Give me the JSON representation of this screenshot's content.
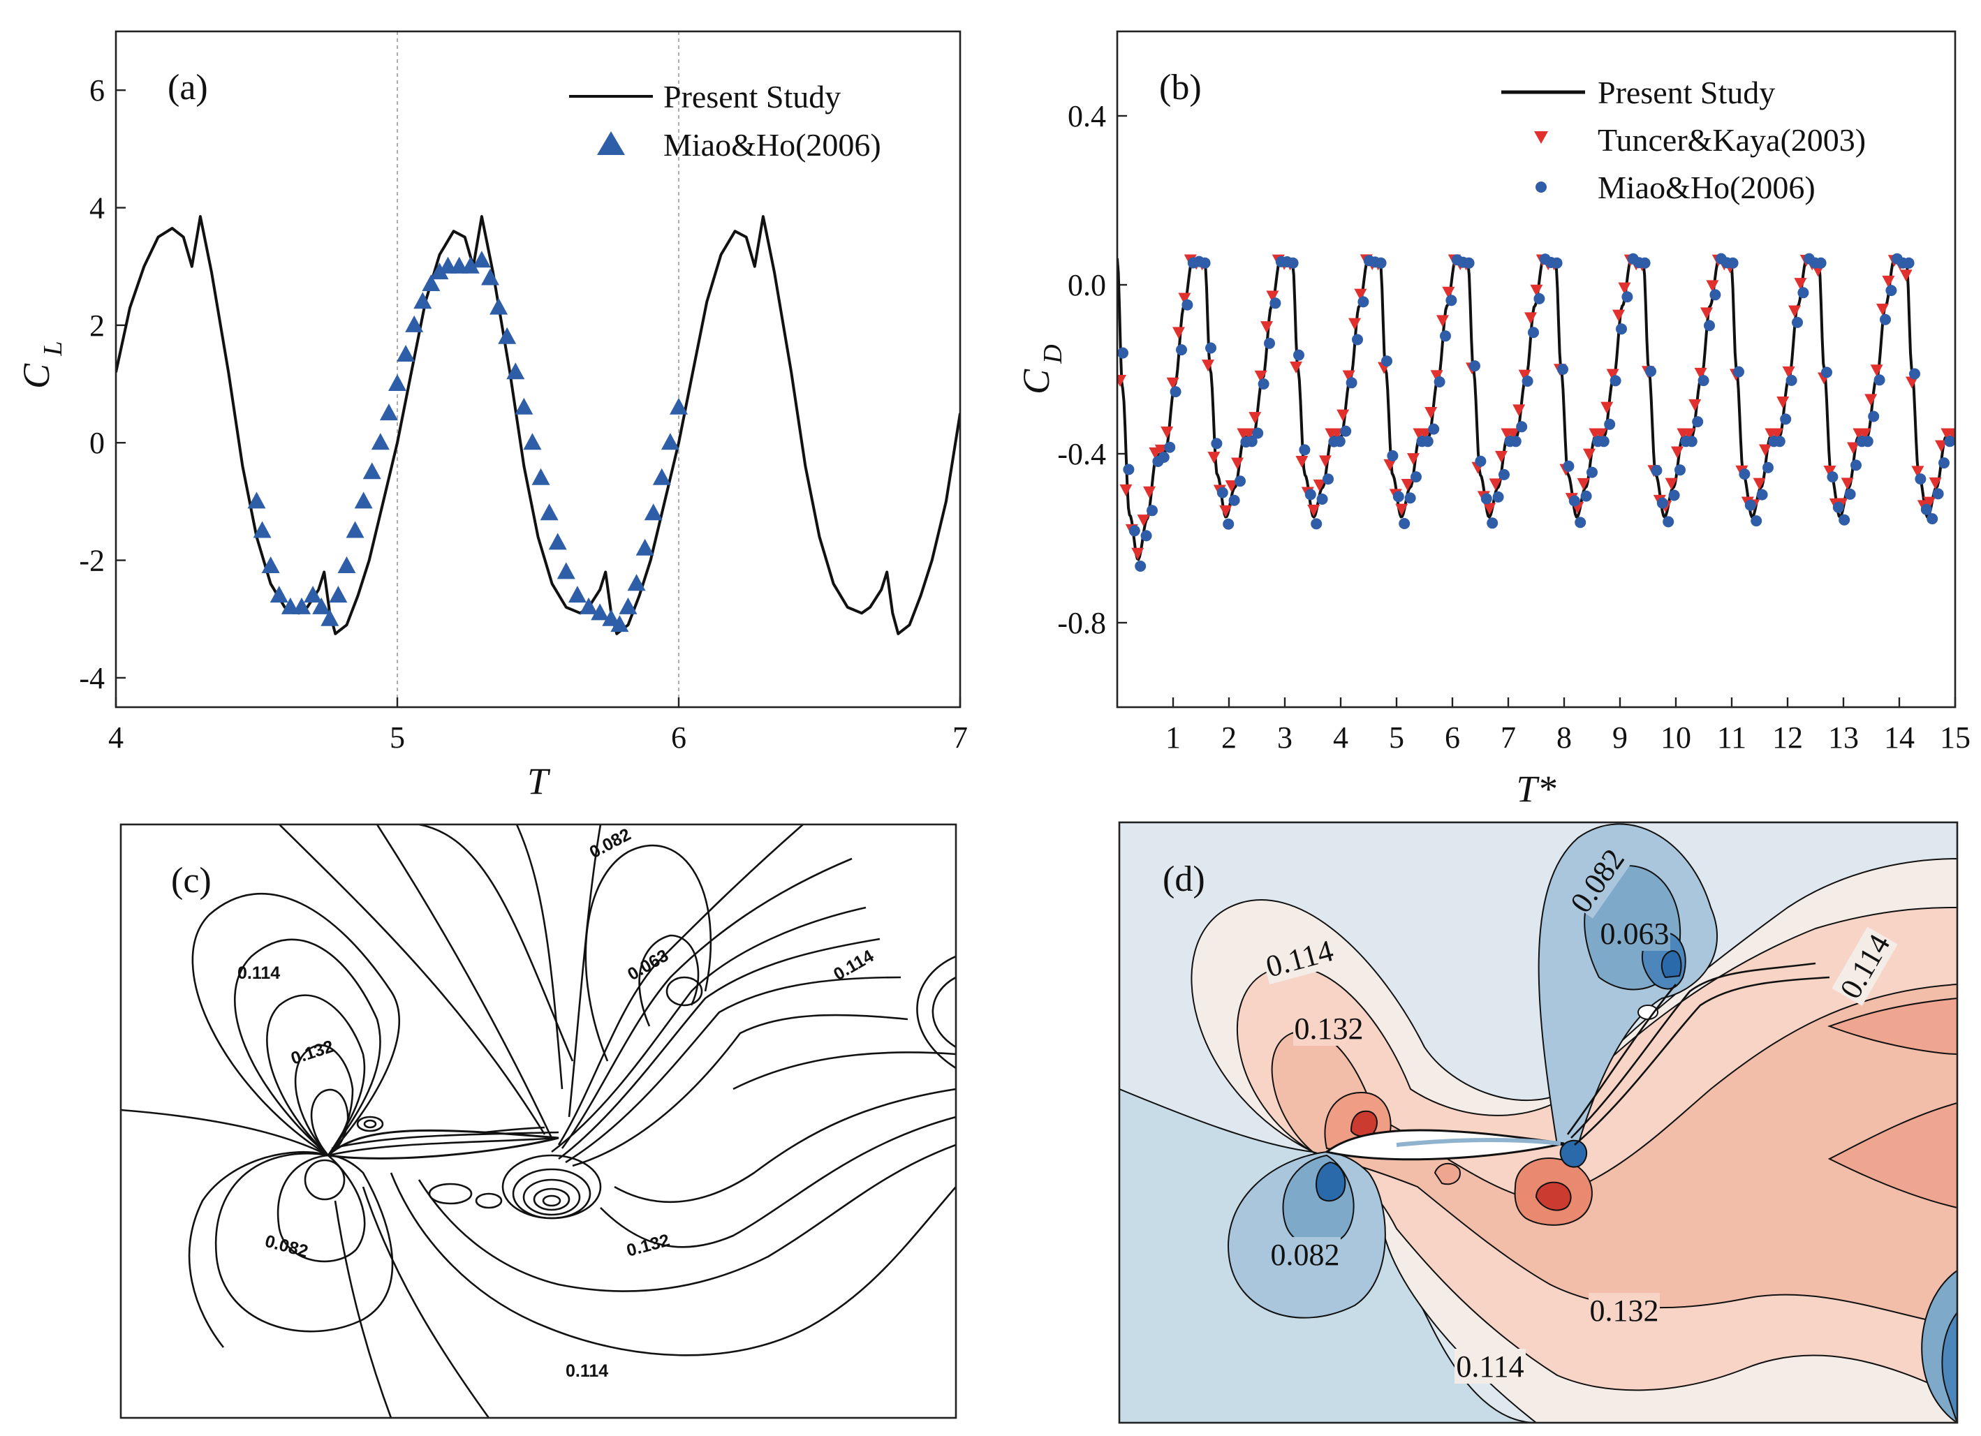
{
  "chart_data": [
    {
      "id": "a",
      "type": "line",
      "panel_label": "(a)",
      "xlabel": "T",
      "ylabel_main": "C",
      "ylabel_sub": "L",
      "xlim": [
        4,
        7
      ],
      "ylim": [
        -4.5,
        7
      ],
      "xticks": [
        "4",
        "5",
        "6",
        "7"
      ],
      "xtick_values": [
        4,
        5,
        6,
        7
      ],
      "yticks": [
        "-4",
        "-2",
        "0",
        "2",
        "4",
        "6"
      ],
      "ytick_values": [
        -4,
        -2,
        0,
        2,
        4,
        6
      ],
      "reference_lines_x": [
        5,
        6
      ],
      "legend": [
        "Present Study",
        "Miao&Ho(2006)"
      ],
      "series": [
        {
          "name": "Present Study",
          "style": "line",
          "x": [
            4.0,
            4.05,
            4.1,
            4.15,
            4.2,
            4.24,
            4.27,
            4.3,
            4.34,
            4.4,
            4.45,
            4.5,
            4.55,
            4.6,
            4.65,
            4.68,
            4.72,
            4.74,
            4.76,
            4.78,
            4.82,
            4.86,
            4.9,
            4.95,
            5.0,
            5.05,
            5.1,
            5.15,
            5.2,
            5.24,
            5.27,
            5.3,
            5.34,
            5.4,
            5.45,
            5.5,
            5.55,
            5.6,
            5.65,
            5.68,
            5.72,
            5.74,
            5.76,
            5.78,
            5.82,
            5.86,
            5.9,
            5.95,
            6.0,
            6.05,
            6.1,
            6.15,
            6.2,
            6.24,
            6.27,
            6.3,
            6.34,
            6.4,
            6.45,
            6.5,
            6.55,
            6.6,
            6.65,
            6.68,
            6.72,
            6.74,
            6.76,
            6.78,
            6.82,
            6.86,
            6.9,
            6.95,
            7.0
          ],
          "y": [
            1.2,
            2.3,
            3.0,
            3.5,
            3.65,
            3.5,
            3.0,
            3.85,
            2.9,
            1.2,
            -0.4,
            -1.6,
            -2.4,
            -2.8,
            -2.9,
            -2.8,
            -2.5,
            -2.2,
            -2.9,
            -3.25,
            -3.1,
            -2.6,
            -2.0,
            -1.0,
            0.0,
            1.2,
            2.4,
            3.2,
            3.6,
            3.5,
            3.0,
            3.85,
            2.9,
            1.2,
            -0.4,
            -1.6,
            -2.4,
            -2.8,
            -2.9,
            -2.8,
            -2.5,
            -2.2,
            -2.9,
            -3.25,
            -3.1,
            -2.6,
            -2.0,
            -1.0,
            0.0,
            1.2,
            2.4,
            3.2,
            3.6,
            3.5,
            3.0,
            3.85,
            2.9,
            1.2,
            -0.4,
            -1.6,
            -2.4,
            -2.8,
            -2.9,
            -2.8,
            -2.5,
            -2.2,
            -2.9,
            -3.25,
            -3.1,
            -2.6,
            -2.0,
            -1.0,
            0.5
          ]
        },
        {
          "name": "Miao&Ho(2006)",
          "style": "triangle",
          "color": "#2e5ea7",
          "x": [
            4.5,
            4.52,
            4.55,
            4.58,
            4.62,
            4.66,
            4.7,
            4.73,
            4.76,
            4.79,
            4.82,
            4.85,
            4.88,
            4.91,
            4.94,
            4.97,
            5.0,
            5.03,
            5.06,
            5.09,
            5.12,
            5.15,
            5.18,
            5.22,
            5.26,
            5.3,
            5.33,
            5.36,
            5.39,
            5.42,
            5.45,
            5.48,
            5.51,
            5.54,
            5.57,
            5.6,
            5.64,
            5.68,
            5.72,
            5.76,
            5.79,
            5.82,
            5.85,
            5.88,
            5.91,
            5.94,
            5.97,
            6.0
          ],
          "y": [
            -1.0,
            -1.5,
            -2.1,
            -2.6,
            -2.8,
            -2.8,
            -2.6,
            -2.8,
            -3.0,
            -2.6,
            -2.1,
            -1.5,
            -1.0,
            -0.5,
            0.0,
            0.5,
            1.0,
            1.5,
            2.0,
            2.4,
            2.7,
            2.9,
            3.0,
            3.0,
            3.0,
            3.1,
            2.8,
            2.3,
            1.8,
            1.2,
            0.6,
            0.0,
            -0.6,
            -1.2,
            -1.7,
            -2.2,
            -2.6,
            -2.8,
            -2.9,
            -3.0,
            -3.1,
            -2.8,
            -2.4,
            -1.8,
            -1.2,
            -0.6,
            0.0,
            0.6
          ]
        }
      ]
    },
    {
      "id": "b",
      "type": "line",
      "panel_label": "(b)",
      "xlabel": "T*",
      "ylabel_main": "C",
      "ylabel_sub": "D",
      "xlim": [
        0,
        15
      ],
      "ylim": [
        -1.0,
        0.6
      ],
      "xticks": [
        "1",
        "2",
        "3",
        "4",
        "5",
        "6",
        "7",
        "8",
        "9",
        "10",
        "11",
        "12",
        "13",
        "14",
        "15"
      ],
      "xtick_values": [
        1,
        2,
        3,
        4,
        5,
        6,
        7,
        8,
        9,
        10,
        11,
        12,
        13,
        14,
        15
      ],
      "yticks": [
        "0.4",
        "0.0",
        "-0.4",
        "-0.8"
      ],
      "ytick_values": [
        0.4,
        0.0,
        -0.4,
        -0.8
      ],
      "legend": [
        "Present Study",
        "Tuncer&Kaya(2003)",
        "Miao&Ho(2006)"
      ],
      "period": 1.57,
      "cycle_shape": {
        "phase": [
          0.0,
          0.06,
          0.14,
          0.24,
          0.34,
          0.45,
          0.55,
          0.66,
          0.76,
          0.86,
          0.94,
          1.0
        ],
        "value": [
          0.05,
          -0.2,
          -0.45,
          -0.55,
          -0.48,
          -0.36,
          -0.36,
          -0.22,
          -0.05,
          0.06,
          0.05,
          0.05
        ]
      },
      "series": [
        {
          "name": "Present Study",
          "style": "line"
        },
        {
          "name": "Tuncer&Kaya(2003)",
          "style": "triangle-down",
          "color": "#e0312f"
        },
        {
          "name": "Miao&Ho(2006)",
          "style": "circle",
          "color": "#2f5da8"
        }
      ]
    },
    {
      "id": "c",
      "type": "contour",
      "panel_label": "(c)",
      "contour_labels": [
        "0.082",
        "0.063",
        "0.114",
        "0.114",
        "0.132",
        "0.082",
        "0.132",
        "0.114"
      ]
    },
    {
      "id": "d",
      "type": "contour",
      "panel_label": "(d)",
      "contour_labels": [
        "0.082",
        "0.063",
        "0.114",
        "0.114",
        "0.132",
        "0.082",
        "0.132",
        "0.114"
      ],
      "colors": {
        "far_field": "#dfe7ef",
        "low": "#2a6aaa",
        "mid_low": "#a9c6dc",
        "neutral": "#f3ece7",
        "mid_high": "#f2bda9",
        "high": "#cc3b2f"
      }
    }
  ]
}
